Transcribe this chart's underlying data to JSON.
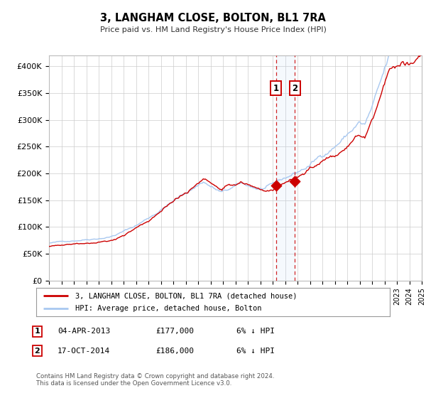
{
  "title": "3, LANGHAM CLOSE, BOLTON, BL1 7RA",
  "subtitle": "Price paid vs. HM Land Registry's House Price Index (HPI)",
  "hpi_color": "#a8c8f0",
  "property_color": "#cc0000",
  "background_color": "#ffffff",
  "grid_color": "#cccccc",
  "sale1_date": 2013.27,
  "sale1_price": 177000,
  "sale1_label": "1",
  "sale2_date": 2014.79,
  "sale2_price": 186000,
  "sale2_label": "2",
  "xmin": 1995,
  "xmax": 2025,
  "ymin": 0,
  "ymax": 420000,
  "yticks": [
    0,
    50000,
    100000,
    150000,
    200000,
    250000,
    300000,
    350000,
    400000
  ],
  "ytick_labels": [
    "£0",
    "£50K",
    "£100K",
    "£150K",
    "£200K",
    "£250K",
    "£300K",
    "£350K",
    "£400K"
  ],
  "legend_property_label": "3, LANGHAM CLOSE, BOLTON, BL1 7RA (detached house)",
  "legend_hpi_label": "HPI: Average price, detached house, Bolton",
  "annotation1_date": "04-APR-2013",
  "annotation1_price": "£177,000",
  "annotation1_hpi": "6% ↓ HPI",
  "annotation2_date": "17-OCT-2014",
  "annotation2_price": "£186,000",
  "annotation2_hpi": "6% ↓ HPI",
  "footer": "Contains HM Land Registry data © Crown copyright and database right 2024.\nThis data is licensed under the Open Government Licence v3.0."
}
